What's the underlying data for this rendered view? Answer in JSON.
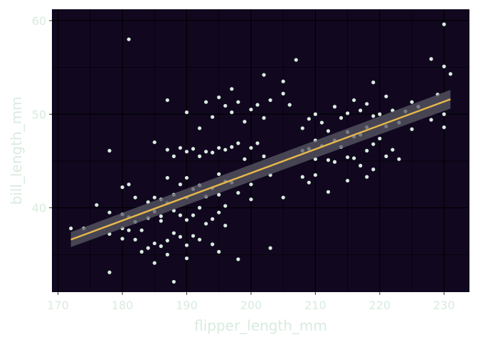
{
  "chart_data": {
    "type": "scatter",
    "title": "",
    "xlabel": "flipper_length_mm",
    "ylabel": "bill_length_mm",
    "xlim": [
      169.05,
      233.95
    ],
    "ylim": [
      30.99,
      61.21
    ],
    "x_ticks": [
      170,
      180,
      190,
      200,
      210,
      220,
      230
    ],
    "y_ticks": [
      40,
      50,
      60
    ],
    "grid": true,
    "legend": "none",
    "colors": {
      "panel_background": "#110820",
      "grid": "#000000",
      "points": "#d9ebdf",
      "fit_line": "#e8b84a",
      "ribbon": "#5a5a66",
      "text": "#d9ebdf"
    },
    "smooth": {
      "method": "lm",
      "x": [
        172,
        231
      ],
      "y": [
        36.6,
        51.6
      ],
      "ci_lower": [
        35.8,
        50.6
      ],
      "ci_upper": [
        37.4,
        52.6
      ]
    },
    "points": [
      [
        172,
        37.8
      ],
      [
        174,
        37.8
      ],
      [
        176,
        40.3
      ],
      [
        178,
        46.1
      ],
      [
        178,
        39.5
      ],
      [
        178,
        37.2
      ],
      [
        178,
        33.1
      ],
      [
        180,
        42.2
      ],
      [
        180,
        39.3
      ],
      [
        180,
        37.8
      ],
      [
        180,
        36.7
      ],
      [
        181,
        58.0
      ],
      [
        181,
        39.0
      ],
      [
        181,
        42.5
      ],
      [
        181,
        37.6
      ],
      [
        182,
        41.1
      ],
      [
        182,
        36.6
      ],
      [
        182,
        38.5
      ],
      [
        183,
        37.6
      ],
      [
        183,
        35.3
      ],
      [
        184,
        40.6
      ],
      [
        184,
        38.9
      ],
      [
        184,
        35.7
      ],
      [
        185,
        47.0
      ],
      [
        185,
        41.1
      ],
      [
        185,
        39.6
      ],
      [
        185,
        36.2
      ],
      [
        185,
        34.1
      ],
      [
        186,
        40.9
      ],
      [
        186,
        38.6
      ],
      [
        186,
        35.9
      ],
      [
        186,
        39.1
      ],
      [
        187,
        51.5
      ],
      [
        187,
        46.2
      ],
      [
        187,
        43.2
      ],
      [
        187,
        40.5
      ],
      [
        187,
        36.5
      ],
      [
        187,
        35.0
      ],
      [
        188,
        45.5
      ],
      [
        188,
        41.4
      ],
      [
        188,
        39.7
      ],
      [
        188,
        37.3
      ],
      [
        188,
        32.1
      ],
      [
        189,
        46.4
      ],
      [
        189,
        42.5
      ],
      [
        189,
        39.2
      ],
      [
        189,
        36.9
      ],
      [
        190,
        50.2
      ],
      [
        190,
        46.0
      ],
      [
        190,
        43.2
      ],
      [
        190,
        41.1
      ],
      [
        190,
        38.7
      ],
      [
        190,
        36.0
      ],
      [
        190,
        34.6
      ],
      [
        191,
        46.3
      ],
      [
        191,
        42.0
      ],
      [
        191,
        39.2
      ],
      [
        191,
        37.0
      ],
      [
        192,
        48.5
      ],
      [
        192,
        45.5
      ],
      [
        192,
        42.4
      ],
      [
        192,
        40.0
      ],
      [
        192,
        36.6
      ],
      [
        193,
        51.3
      ],
      [
        193,
        46.0
      ],
      [
        193,
        41.2
      ],
      [
        193,
        38.3
      ],
      [
        194,
        49.7
      ],
      [
        194,
        45.9
      ],
      [
        194,
        42.1
      ],
      [
        194,
        38.8
      ],
      [
        194,
        36.1
      ],
      [
        195,
        51.8
      ],
      [
        195,
        46.4
      ],
      [
        195,
        43.6
      ],
      [
        195,
        41.4
      ],
      [
        195,
        39.5
      ],
      [
        195,
        35.3
      ],
      [
        196,
        50.9
      ],
      [
        196,
        46.2
      ],
      [
        196,
        42.8
      ],
      [
        196,
        40.2
      ],
      [
        196,
        38.1
      ],
      [
        197,
        52.7
      ],
      [
        197,
        50.2
      ],
      [
        197,
        46.5
      ],
      [
        197,
        42.7
      ],
      [
        198,
        51.3
      ],
      [
        198,
        46.9
      ],
      [
        198,
        41.6
      ],
      [
        198,
        34.5
      ],
      [
        199,
        49.2
      ],
      [
        199,
        45.2
      ],
      [
        200,
        50.5
      ],
      [
        200,
        46.4
      ],
      [
        200,
        42.5
      ],
      [
        200,
        40.9
      ],
      [
        201,
        51.0
      ],
      [
        201,
        46.9
      ],
      [
        202,
        54.2
      ],
      [
        202,
        49.6
      ],
      [
        202,
        45.5
      ],
      [
        203,
        51.5
      ],
      [
        203,
        43.5
      ],
      [
        203,
        35.7
      ],
      [
        205,
        53.5
      ],
      [
        205,
        52.2
      ],
      [
        205,
        41.1
      ],
      [
        206,
        51.0
      ],
      [
        207,
        55.8
      ],
      [
        208,
        48.5
      ],
      [
        208,
        46.1
      ],
      [
        208,
        43.3
      ],
      [
        209,
        49.5
      ],
      [
        209,
        46.3
      ],
      [
        209,
        42.7
      ],
      [
        210,
        50.0
      ],
      [
        210,
        47.2
      ],
      [
        210,
        45.2
      ],
      [
        210,
        43.5
      ],
      [
        211,
        49.1
      ],
      [
        211,
        46.6
      ],
      [
        212,
        48.2
      ],
      [
        212,
        45.1
      ],
      [
        212,
        41.7
      ],
      [
        213,
        50.8
      ],
      [
        213,
        47.2
      ],
      [
        213,
        44.9
      ],
      [
        214,
        49.6
      ],
      [
        214,
        46.5
      ],
      [
        215,
        50.1
      ],
      [
        215,
        48.1
      ],
      [
        215,
        45.4
      ],
      [
        215,
        42.9
      ],
      [
        216,
        51.5
      ],
      [
        216,
        47.6
      ],
      [
        216,
        45.3
      ],
      [
        217,
        50.4
      ],
      [
        217,
        47.8
      ],
      [
        217,
        44.5
      ],
      [
        218,
        51.1
      ],
      [
        218,
        48.6
      ],
      [
        218,
        46.1
      ],
      [
        218,
        43.3
      ],
      [
        219,
        53.4
      ],
      [
        219,
        49.8
      ],
      [
        219,
        46.8
      ],
      [
        219,
        44.1
      ],
      [
        220,
        50.0
      ],
      [
        220,
        47.4
      ],
      [
        221,
        51.9
      ],
      [
        221,
        48.7
      ],
      [
        221,
        45.5
      ],
      [
        222,
        50.4
      ],
      [
        222,
        46.2
      ],
      [
        223,
        49.1
      ],
      [
        223,
        45.2
      ],
      [
        224,
        50.3
      ],
      [
        225,
        51.3
      ],
      [
        225,
        48.4
      ],
      [
        226,
        50.8
      ],
      [
        228,
        55.9
      ],
      [
        228,
        49.4
      ],
      [
        229,
        52.1
      ],
      [
        230,
        59.6
      ],
      [
        230,
        55.1
      ],
      [
        230,
        50.0
      ],
      [
        230,
        48.6
      ],
      [
        231,
        54.3
      ]
    ]
  }
}
